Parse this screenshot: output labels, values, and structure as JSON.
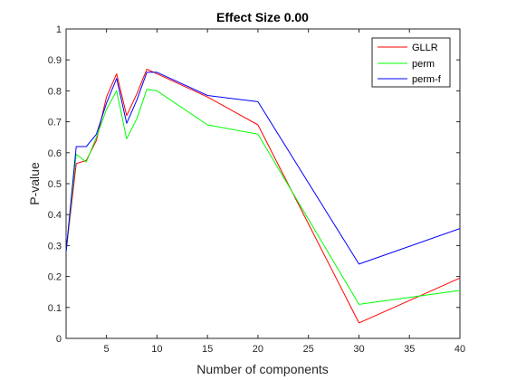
{
  "chart_data": {
    "type": "line",
    "title": "Effect Size 0.00",
    "xlabel": "Number of components",
    "ylabel": "P-value",
    "xlim": [
      1,
      40
    ],
    "ylim": [
      0,
      1
    ],
    "xticks": [
      5,
      10,
      15,
      20,
      25,
      30,
      35,
      40
    ],
    "yticks": [
      0,
      0.1,
      0.2,
      0.3,
      0.4,
      0.5,
      0.6,
      0.7,
      0.8,
      0.9,
      1
    ],
    "grid": false,
    "legend_position": "top-right",
    "x": [
      1,
      2,
      3,
      4,
      5,
      6,
      7,
      8,
      9,
      10,
      15,
      20,
      30,
      40
    ],
    "series": [
      {
        "name": "GLLR",
        "color": "#ff0000",
        "values": [
          0.28,
          0.565,
          0.575,
          0.64,
          0.78,
          0.855,
          0.72,
          0.79,
          0.87,
          0.855,
          0.78,
          0.69,
          0.05,
          0.195
        ]
      },
      {
        "name": "perm",
        "color": "#00ff00",
        "values": [
          0.28,
          0.595,
          0.57,
          0.65,
          0.74,
          0.8,
          0.645,
          0.71,
          0.805,
          0.8,
          0.69,
          0.66,
          0.11,
          0.155
        ]
      },
      {
        "name": "perm-f",
        "color": "#0000ff",
        "values": [
          0.28,
          0.62,
          0.62,
          0.66,
          0.76,
          0.84,
          0.695,
          0.77,
          0.86,
          0.86,
          0.785,
          0.765,
          0.24,
          0.355
        ]
      }
    ]
  }
}
